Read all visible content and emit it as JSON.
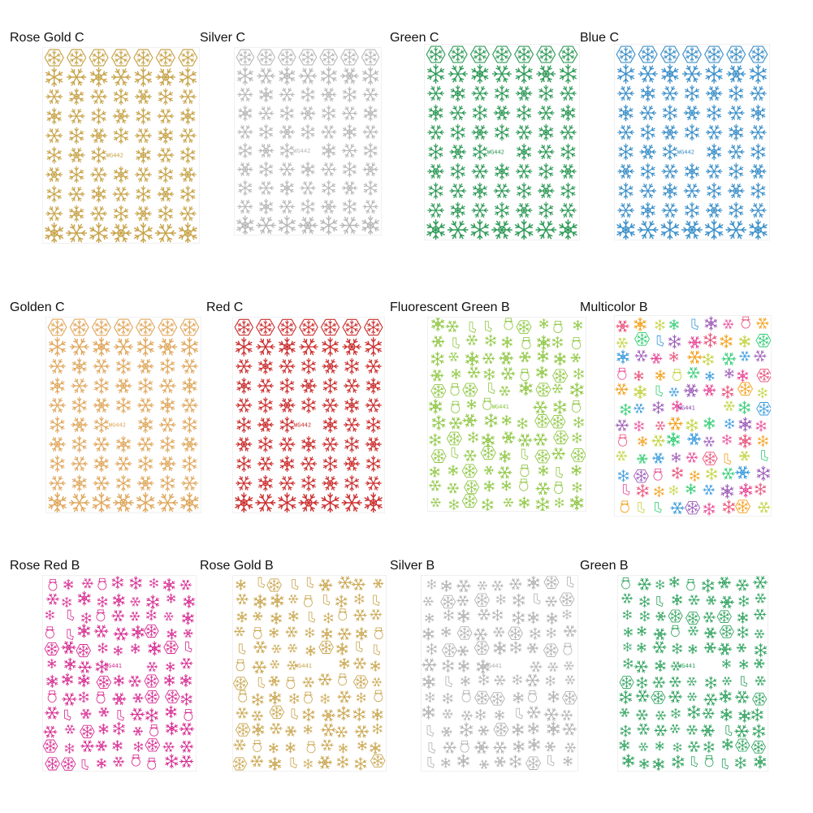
{
  "variants": [
    {
      "label": "Rose Gold C",
      "code": "WG442",
      "style": "C",
      "color": "#c8a44a"
    },
    {
      "label": "Silver C",
      "code": "WG442",
      "style": "C",
      "color": "#b8b8b8"
    },
    {
      "label": "Green C",
      "code": "WG442",
      "style": "C",
      "color": "#2e9a57"
    },
    {
      "label": "Blue C",
      "code": "WG442",
      "style": "C",
      "color": "#3b8fc9"
    },
    {
      "label": "Golden C",
      "code": "WG442",
      "style": "C",
      "color": "#e0a85e"
    },
    {
      "label": "Red C",
      "code": "WG442",
      "style": "C",
      "color": "#cc2e2e"
    },
    {
      "label": "Fluorescent Green B",
      "code": "WG441",
      "style": "B",
      "color": "#8dc63f"
    },
    {
      "label": "Multicolor B",
      "code": "WG441",
      "style": "B",
      "color": "multicolor",
      "palette": [
        "#e94e77",
        "#f39c12",
        "#c0d23a",
        "#2ecc71",
        "#3498db",
        "#9b59b6",
        "#e84393"
      ]
    },
    {
      "label": "Rose Red B",
      "code": "WG441",
      "style": "B",
      "color": "#d6268f"
    },
    {
      "label": "Rose Gold B",
      "code": "WG441",
      "style": "B",
      "color": "#c8a44a"
    },
    {
      "label": "Silver B",
      "code": "WG441",
      "style": "B",
      "color": "#b0b0b0"
    },
    {
      "label": "Green B",
      "code": "WG441",
      "style": "B",
      "color": "#2aa05a"
    }
  ]
}
